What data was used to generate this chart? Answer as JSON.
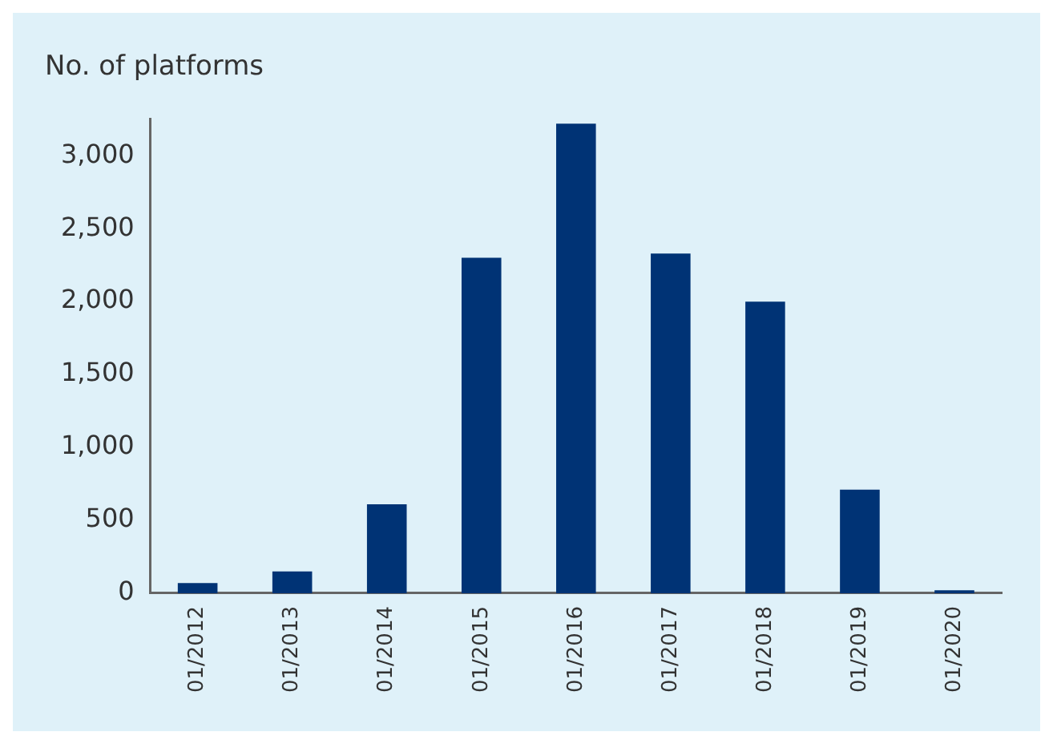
{
  "chart_data": {
    "type": "bar",
    "ylabel": "No. of platforms",
    "categories": [
      "01/2012",
      "01/2013",
      "01/2014",
      "01/2015",
      "01/2016",
      "01/2017",
      "01/2018",
      "01/2019",
      "01/2020"
    ],
    "values": [
      70,
      150,
      610,
      2300,
      3220,
      2330,
      2000,
      710,
      20
    ],
    "color": "#003375",
    "ylim": [
      0,
      3250
    ],
    "yticks": [
      0,
      500,
      {
        "value": 1000,
        "label": "1,000"
      },
      {
        "value": 1500,
        "label": "1,500"
      },
      {
        "value": 2000,
        "label": "2,000"
      },
      {
        "value": 2500,
        "label": "2,500"
      },
      {
        "value": 3000,
        "label": "3,000"
      }
    ],
    "grid": false
  }
}
